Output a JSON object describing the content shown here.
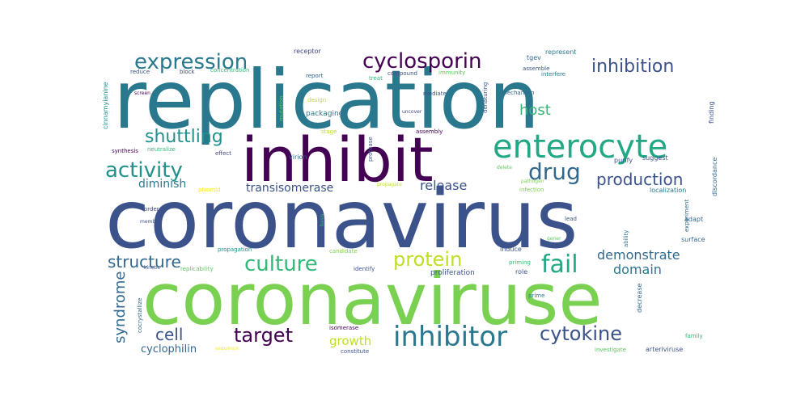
{
  "title": "",
  "words": [
    {
      "text": "replication",
      "color": "#2a788e"
    },
    {
      "text": "coronavirus",
      "color": "#3b528b"
    },
    {
      "text": "coronaviruse",
      "color": "#7ad151"
    },
    {
      "text": "inhibit",
      "color": "#440154"
    },
    {
      "text": "enterocyte",
      "color": "#22a884"
    },
    {
      "text": "expression",
      "color": "#2a788e"
    },
    {
      "text": "cyclosporin",
      "color": "#440154"
    },
    {
      "text": "inhibition",
      "color": "#3b528b"
    },
    {
      "text": "activity",
      "color": "#21918c"
    },
    {
      "text": "shuttling",
      "color": "#21918c"
    },
    {
      "text": "drug",
      "color": "#31688e"
    },
    {
      "text": "production",
      "color": "#3b528b"
    },
    {
      "text": "host",
      "color": "#35b779"
    },
    {
      "text": "diminish",
      "color": "#2a788e"
    },
    {
      "text": "transisomerase",
      "color": "#3b528b"
    },
    {
      "text": "release",
      "color": "#3b528b"
    },
    {
      "text": "structure",
      "color": "#31688e"
    },
    {
      "text": "culture",
      "color": "#35b779"
    },
    {
      "text": "protein",
      "color": "#bddf26"
    },
    {
      "text": "fail",
      "color": "#22a884"
    },
    {
      "text": "demonstrate",
      "color": "#31688e"
    },
    {
      "text": "domain",
      "color": "#2a788e"
    },
    {
      "text": "syndrome",
      "color": "#31688e"
    },
    {
      "text": "cell",
      "color": "#3b528b"
    },
    {
      "text": "target",
      "color": "#440154"
    },
    {
      "text": "inhibitor",
      "color": "#2a788e"
    },
    {
      "text": "cytokine",
      "color": "#3b528b"
    },
    {
      "text": "growth",
      "color": "#bddf26"
    },
    {
      "text": "cyclophilin",
      "color": "#31688e"
    },
    {
      "text": "receptor",
      "color": "#414487"
    },
    {
      "text": "tgev",
      "color": "#31688e"
    },
    {
      "text": "represent",
      "color": "#2a788e"
    },
    {
      "text": "reduce",
      "color": "#3b528b"
    },
    {
      "text": "block",
      "color": "#414487"
    },
    {
      "text": "concentration",
      "color": "#35b779"
    },
    {
      "text": "report",
      "color": "#31688e"
    },
    {
      "text": "compound",
      "color": "#3b528b"
    },
    {
      "text": "immunity",
      "color": "#5ec962"
    },
    {
      "text": "assemble",
      "color": "#3b528b"
    },
    {
      "text": "interfere",
      "color": "#2a788e"
    },
    {
      "text": "cinnamyianine",
      "color": "#21918c"
    },
    {
      "text": "screen",
      "color": "#440154"
    },
    {
      "text": "treat",
      "color": "#35b779"
    },
    {
      "text": "mutation",
      "color": "#5ec962"
    },
    {
      "text": "design",
      "color": "#bddf26"
    },
    {
      "text": "packaging",
      "color": "#2a788e"
    },
    {
      "text": "mediate",
      "color": "#3b528b"
    },
    {
      "text": "mechanism",
      "color": "#31688e"
    },
    {
      "text": "denaturing",
      "color": "#3b528b"
    },
    {
      "text": "uncover",
      "color": "#414487"
    },
    {
      "text": "finding",
      "color": "#3b528b"
    },
    {
      "text": "stage",
      "color": "#bddf26"
    },
    {
      "text": "assembly",
      "color": "#440154"
    },
    {
      "text": "synthesis",
      "color": "#440154"
    },
    {
      "text": "neutralize",
      "color": "#35b779"
    },
    {
      "text": "effect",
      "color": "#414487"
    },
    {
      "text": "virion",
      "color": "#31688e"
    },
    {
      "text": "protease",
      "color": "#3b528b"
    },
    {
      "text": "purify",
      "color": "#3b528b"
    },
    {
      "text": "suggest",
      "color": "#3b528b"
    },
    {
      "text": "delete",
      "color": "#5ec962"
    },
    {
      "text": "propagate",
      "color": "#bddf26"
    },
    {
      "text": "pathogen",
      "color": "#7ad151"
    },
    {
      "text": "infection",
      "color": "#7ad151"
    },
    {
      "text": "plasmid",
      "color": "#fde725"
    },
    {
      "text": "localization",
      "color": "#2a788e"
    },
    {
      "text": "discordance",
      "color": "#31688e"
    },
    {
      "text": "order",
      "color": "#414487"
    },
    {
      "text": "lead",
      "color": "#3b528b"
    },
    {
      "text": "experiment",
      "color": "#31688e"
    },
    {
      "text": "member",
      "color": "#3b528b"
    },
    {
      "text": "basis",
      "color": "#35b779"
    },
    {
      "text": "adapt",
      "color": "#31688e"
    },
    {
      "text": "ability",
      "color": "#2a788e"
    },
    {
      "text": "gener",
      "color": "#5ec962"
    },
    {
      "text": "surface",
      "color": "#31688e"
    },
    {
      "text": "propagation",
      "color": "#21918c"
    },
    {
      "text": "candidate",
      "color": "#7ad151"
    },
    {
      "text": "induce",
      "color": "#3b528b"
    },
    {
      "text": "kinetic",
      "color": "#3b528b"
    },
    {
      "text": "replicability",
      "color": "#5ec962"
    },
    {
      "text": "identify",
      "color": "#3b528b"
    },
    {
      "text": "priming",
      "color": "#35b779"
    },
    {
      "text": "proliferation",
      "color": "#3b528b"
    },
    {
      "text": "role",
      "color": "#3b528b"
    },
    {
      "text": "cocrystallize",
      "color": "#31688e"
    },
    {
      "text": "prime",
      "color": "#2a788e"
    },
    {
      "text": "decrease",
      "color": "#31688e"
    },
    {
      "text": "isomerase",
      "color": "#440154"
    },
    {
      "text": "sequence",
      "color": "#fde725"
    },
    {
      "text": "constitute",
      "color": "#3b528b"
    },
    {
      "text": "investigate",
      "color": "#5ec962"
    },
    {
      "text": "arteriviruse",
      "color": "#3b528b"
    },
    {
      "text": "family",
      "color": "#35b779"
    }
  ]
}
